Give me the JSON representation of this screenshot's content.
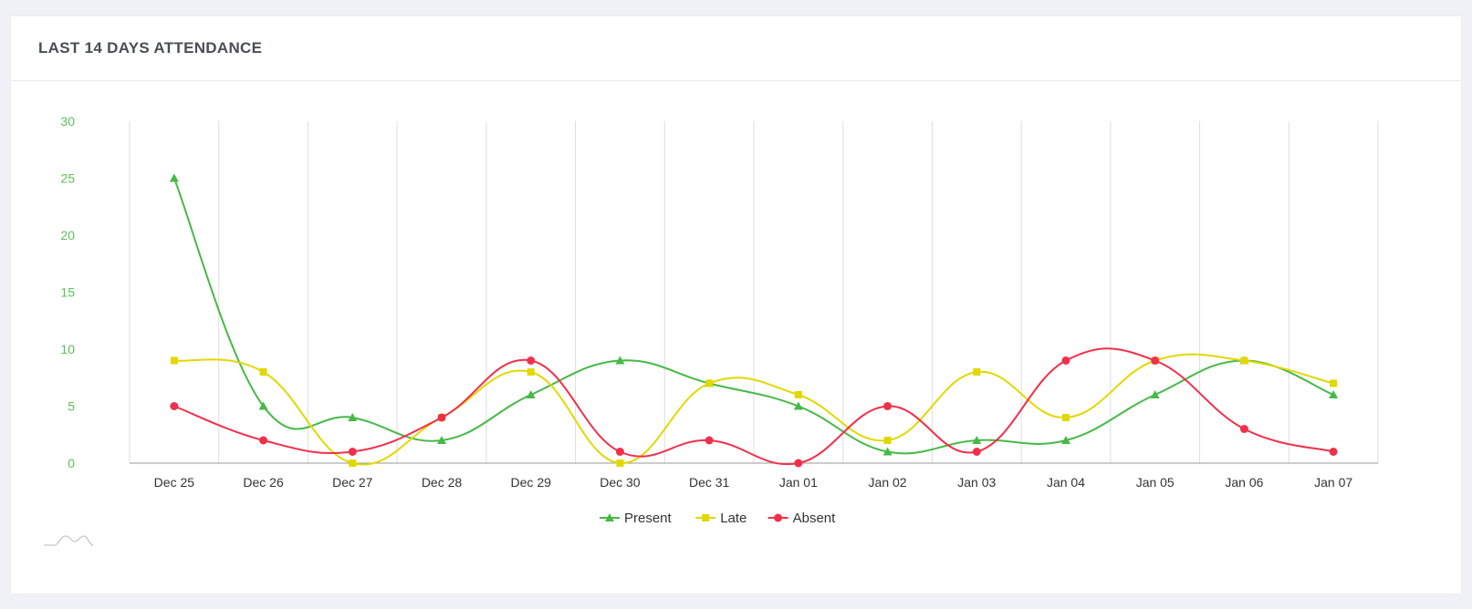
{
  "card": {
    "title": "LAST 14 DAYS ATTENDANCE"
  },
  "colors": {
    "present": "#46b946",
    "late": "#e2d800",
    "absent": "#f0304a",
    "grid": "#dedede",
    "y_tick": "#5cbf5a",
    "x_tick": "#333333"
  },
  "chart_data": {
    "type": "line",
    "title": "LAST 14 DAYS ATTENDANCE",
    "categories": [
      "Dec 25",
      "Dec 26",
      "Dec 27",
      "Dec 28",
      "Dec 29",
      "Dec 30",
      "Dec 31",
      "Jan 01",
      "Jan 02",
      "Jan 03",
      "Jan 04",
      "Jan 05",
      "Jan 06",
      "Jan 07"
    ],
    "y_ticks": [
      0,
      5,
      10,
      15,
      20,
      25,
      30
    ],
    "ylim": [
      0,
      30
    ],
    "grid": "vertical",
    "legend_position": "bottom-center",
    "series": [
      {
        "name": "Present",
        "marker": "triangle",
        "color": "#46b946",
        "values": [
          25,
          5,
          4,
          2,
          6,
          9,
          7,
          5,
          1,
          2,
          2,
          6,
          9,
          6
        ]
      },
      {
        "name": "Late",
        "marker": "square",
        "color": "#e2d800",
        "values": [
          9,
          8,
          0,
          4,
          8,
          0,
          7,
          6,
          2,
          8,
          4,
          9,
          9,
          7
        ]
      },
      {
        "name": "Absent",
        "marker": "circle",
        "color": "#f0304a",
        "values": [
          5,
          2,
          1,
          4,
          9,
          1,
          2,
          0,
          5,
          1,
          9,
          9,
          3,
          1
        ]
      }
    ]
  }
}
